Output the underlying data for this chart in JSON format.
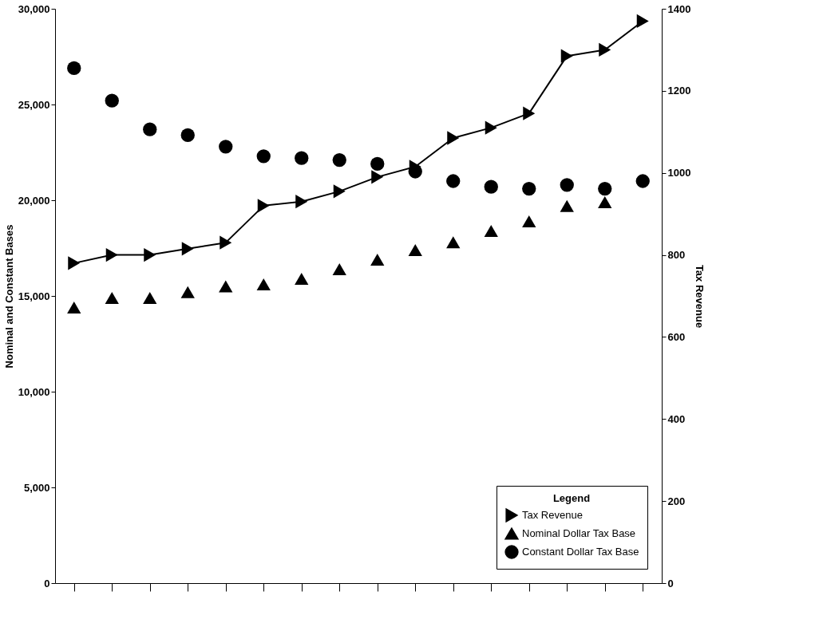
{
  "chart_data": {
    "type": "scatter",
    "ylabel": "Nominal and Constant Bases",
    "y2label": "Tax Revenue",
    "legend_title": "Legend",
    "legend": "bottom right",
    "tick_labels": "y",
    "grid": false,
    "categories": [
      null,
      null,
      null,
      null,
      null,
      null,
      null,
      null,
      null,
      null,
      null,
      null,
      null,
      null,
      null,
      null
    ],
    "ylim": [
      0,
      30000
    ],
    "yticks": [
      {
        "value": 0,
        "label": "0"
      },
      {
        "value": 5000,
        "label": "5,000"
      },
      {
        "value": 10000,
        "label": "10,000"
      },
      {
        "value": 15000,
        "label": "15,000"
      },
      {
        "value": 20000,
        "label": "20,000"
      },
      {
        "value": 25000,
        "label": "25,000"
      },
      {
        "value": 30000,
        "label": "30,000"
      }
    ],
    "y2lim": [
      0,
      1400
    ],
    "y2ticks": [
      0,
      200,
      400,
      600,
      800,
      1000,
      1200,
      1400
    ],
    "series": [
      {
        "name": "Tax Revenue",
        "type": "line",
        "axis": "y2",
        "marker": "triangle-right",
        "color": "#000000",
        "values": [
          780,
          800,
          800,
          815,
          830,
          920,
          930,
          955,
          990,
          1015,
          1085,
          1110,
          1145,
          1285,
          1300,
          1370
        ]
      },
      {
        "name": "Nominal Dollar Tax Base",
        "marker": "triangle",
        "color": "#000000",
        "values": [
          14400,
          14900,
          14900,
          15200,
          15500,
          15600,
          15900,
          16400,
          16900,
          17400,
          17800,
          18400,
          18900,
          19700,
          19900,
          null
        ]
      },
      {
        "name": "Constant Dollar Tax Base",
        "marker": "circle",
        "color": "#000000",
        "values": [
          26900,
          25200,
          23700,
          23400,
          22800,
          22300,
          22200,
          22100,
          21900,
          21500,
          21000,
          20700,
          20600,
          20800,
          20600,
          21000
        ]
      }
    ]
  }
}
